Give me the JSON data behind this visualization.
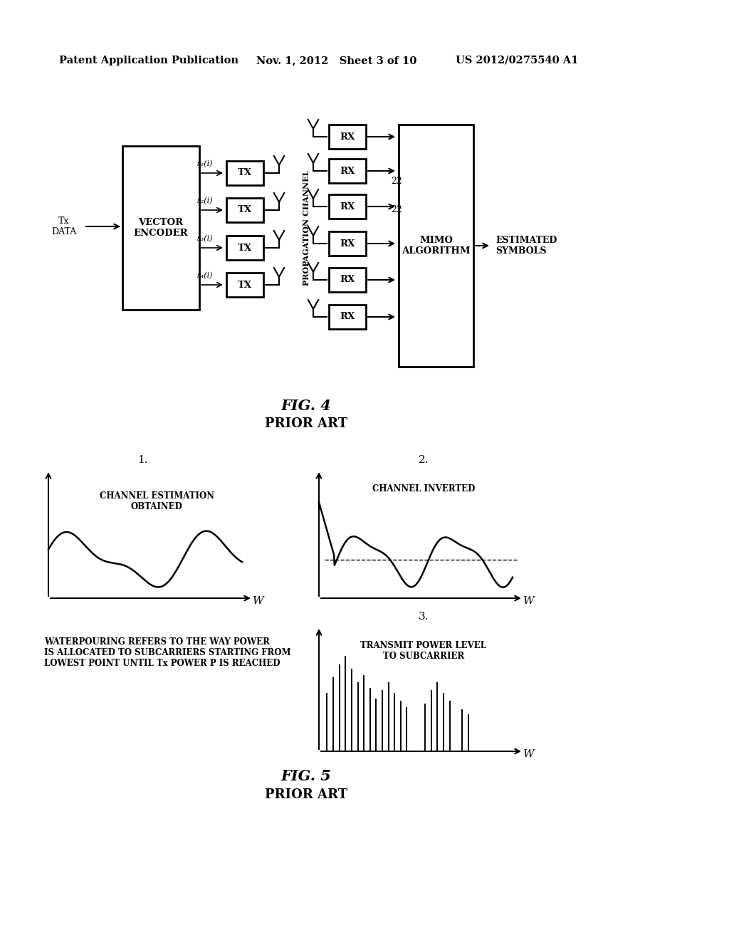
{
  "header_left": "Patent Application Publication",
  "header_mid": "Nov. 1, 2012   Sheet 3 of 10",
  "header_right": "US 2012/0275540 A1",
  "fig4_label": "FIG. 4",
  "fig4_sub": "PRIOR ART",
  "fig5_label": "FIG. 5",
  "fig5_sub": "PRIOR ART",
  "tx_data_label": "Tx\nDATA",
  "vector_encoder_label": "VECTOR\nENCODER",
  "tx_labels": [
    "TX",
    "TX",
    "TX",
    "TX"
  ],
  "rx_labels": [
    "RX",
    "RX",
    "RX",
    "RX",
    "RX",
    "RX"
  ],
  "prop_channel_label": "PROPAGATION CHANNEL",
  "mimo_label": "MIMO\nALGORITHM",
  "estimated_label": "ESTIMATED\nSYMBOLS",
  "label_22_1": "22",
  "label_22_2": "22",
  "plot1_title": "1.",
  "plot1_label": "CHANNEL ESTIMATION\nOBTAINED",
  "plot1_xlabel": "W",
  "plot2_title": "2.",
  "plot2_label": "CHANNEL INVERTED",
  "plot2_xlabel": "W",
  "plot3_title": "3.",
  "plot3_label": "TRANSMIT POWER LEVEL\nTO SUBCARRIER",
  "plot3_xlabel": "W",
  "waterpouring_text": "WATERPOURING REFERS TO THE WAY POWER\nIS ALLOCATED TO SUBCARRIERS STARTING FROM\nLOWEST POINT UNTIL Tx POWER P IS REACHED",
  "bg_color": "#ffffff",
  "line_color": "#000000"
}
